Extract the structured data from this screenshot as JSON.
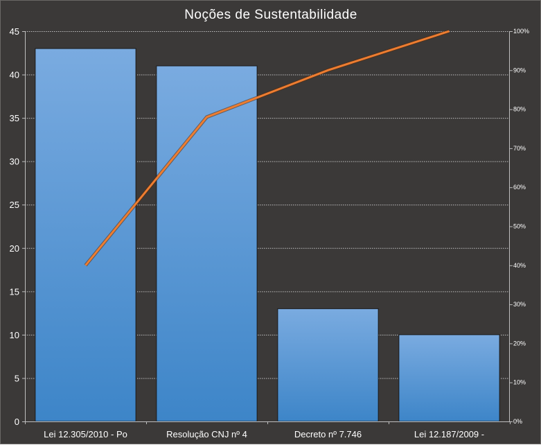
{
  "chart_data": {
    "type": "bar",
    "title": "Noções de Sustentabilidade",
    "categories": [
      "Lei 12.305/2010 - Po",
      "Resolução CNJ nº 4",
      "Decreto nº 7.746",
      "Lei 12.187/2009 -"
    ],
    "values": [
      43,
      41,
      13,
      10
    ],
    "cumulative_percent": [
      40,
      78,
      90,
      100
    ],
    "ylim": [
      0,
      45
    ],
    "yticks": [
      0,
      5,
      10,
      15,
      20,
      25,
      30,
      35,
      40,
      45
    ],
    "y2lim": [
      0,
      100
    ],
    "y2ticks": [
      "0%",
      "10%",
      "20%",
      "30%",
      "40%",
      "50%",
      "60%",
      "70%",
      "80%",
      "90%",
      "100%"
    ],
    "grid": true,
    "legend": "none",
    "colors": {
      "background": "#3b3938",
      "bar_top": "#7aabe0",
      "bar_bottom": "#3d85c8",
      "bar_edge": "#1a1a1a",
      "line": "#ed7d31",
      "grid": "#bfbfbf",
      "text": "#ffffff"
    }
  }
}
